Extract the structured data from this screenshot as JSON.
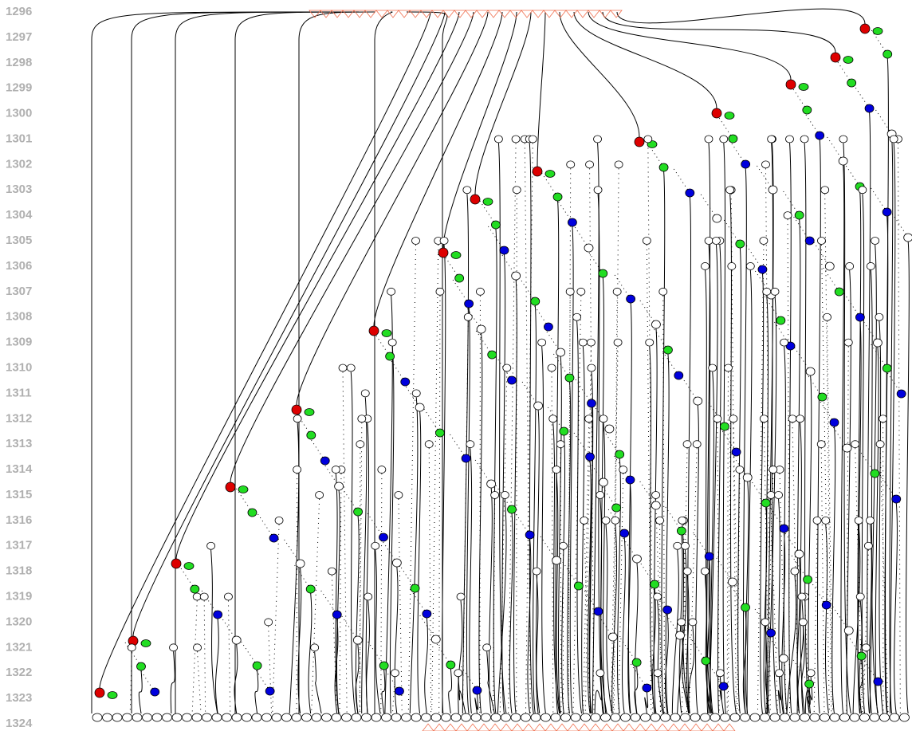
{
  "rows": [
    1296,
    1297,
    1298,
    1299,
    1300,
    1301,
    1302,
    1303,
    1304,
    1305,
    1306,
    1307,
    1308,
    1309,
    1310,
    1311,
    1312,
    1313,
    1314,
    1315,
    1316,
    1317,
    1318,
    1319,
    1320,
    1321,
    1322,
    1323,
    1324
  ]
}
